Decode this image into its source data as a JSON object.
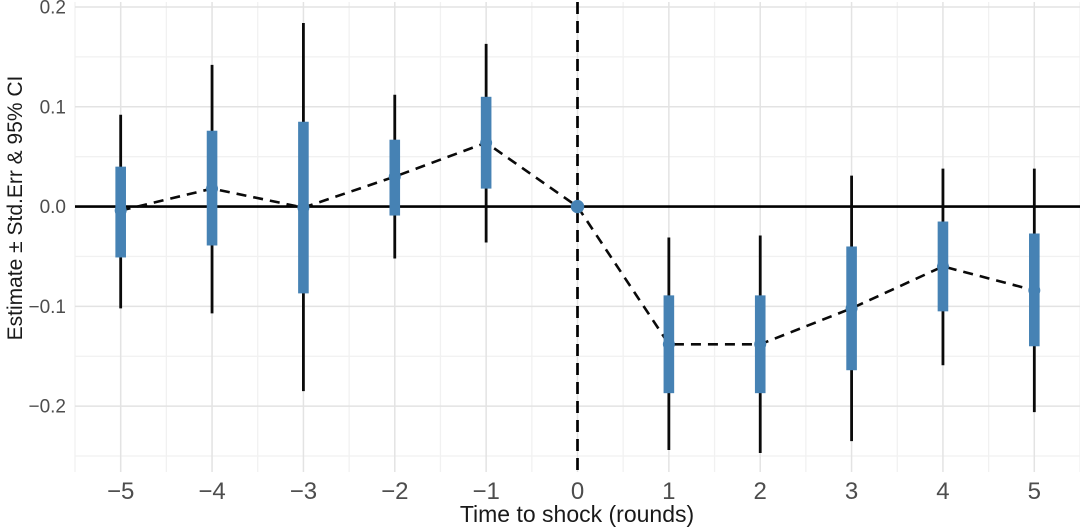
{
  "chart_data": {
    "type": "pointrange",
    "title": "",
    "xlabel": "Time to shock (rounds)",
    "ylabel": "Estimate ± Std.Err & 95% CI",
    "x_ticks": [
      -5,
      -4,
      -3,
      -2,
      -1,
      0,
      1,
      2,
      3,
      4,
      5
    ],
    "x_tick_labels": [
      "−5",
      "−4",
      "−3",
      "−2",
      "−1",
      "0",
      "1",
      "2",
      "3",
      "4",
      "5"
    ],
    "y_ticks": [
      0.2,
      0.1,
      0.0,
      -0.1,
      -0.2
    ],
    "y_tick_labels": [
      "0.2",
      "0.1",
      "0.0",
      "−0.1",
      "−0.2"
    ],
    "xlim": [
      -5.5,
      5.5
    ],
    "ylim": [
      -0.266,
      0.205
    ],
    "grid": true,
    "reference_x": 0,
    "reference_y": 0,
    "points": [
      {
        "t": -5,
        "estimate": -0.004,
        "se_low": -0.051,
        "se_high": 0.04,
        "ci_low": -0.102,
        "ci_high": 0.092,
        "reference": false
      },
      {
        "t": -4,
        "estimate": 0.018,
        "se_low": -0.039,
        "se_high": 0.076,
        "ci_low": -0.107,
        "ci_high": 0.142,
        "reference": false
      },
      {
        "t": -3,
        "estimate": -0.001,
        "se_low": -0.087,
        "se_high": 0.085,
        "ci_low": -0.185,
        "ci_high": 0.184,
        "reference": false
      },
      {
        "t": -2,
        "estimate": 0.03,
        "se_low": -0.009,
        "se_high": 0.067,
        "ci_low": -0.052,
        "ci_high": 0.112,
        "reference": false
      },
      {
        "t": -1,
        "estimate": 0.064,
        "se_low": 0.018,
        "se_high": 0.11,
        "ci_low": -0.036,
        "ci_high": 0.163,
        "reference": false
      },
      {
        "t": 0,
        "estimate": 0.0,
        "se_low": null,
        "se_high": null,
        "ci_low": null,
        "ci_high": null,
        "reference": true
      },
      {
        "t": 1,
        "estimate": -0.138,
        "se_low": -0.187,
        "se_high": -0.089,
        "ci_low": -0.244,
        "ci_high": -0.031,
        "reference": false
      },
      {
        "t": 2,
        "estimate": -0.138,
        "se_low": -0.187,
        "se_high": -0.089,
        "ci_low": -0.247,
        "ci_high": -0.029,
        "reference": false
      },
      {
        "t": 3,
        "estimate": -0.102,
        "se_low": -0.164,
        "se_high": -0.04,
        "ci_low": -0.235,
        "ci_high": 0.031,
        "reference": false
      },
      {
        "t": 4,
        "estimate": -0.06,
        "se_low": -0.105,
        "se_high": -0.015,
        "ci_low": -0.159,
        "ci_high": 0.038,
        "reference": false
      },
      {
        "t": 5,
        "estimate": -0.084,
        "se_low": -0.14,
        "se_high": -0.027,
        "ci_low": -0.206,
        "ci_high": 0.038,
        "reference": false
      }
    ],
    "colors": {
      "point_and_se_bar": "#4682b4",
      "ci_line": "#0a0a0a",
      "connector_line": "#0a0a0a",
      "zero_line": "#000000",
      "shock_vline": "#000000",
      "grid_major": "#e3e3e3",
      "grid_minor": "#f1f1f1",
      "tick_label": "#4d4d4d",
      "axis_title": "#1a1a1a",
      "background": "#ffffff"
    }
  }
}
